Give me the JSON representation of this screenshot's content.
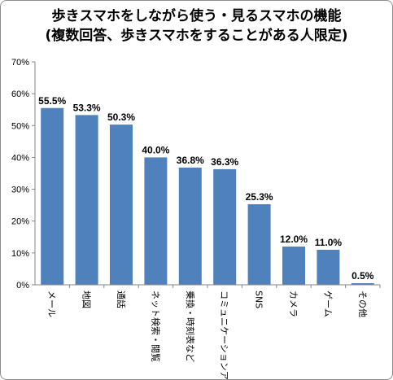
{
  "chart_data": {
    "type": "bar",
    "title": "歩きスマホをしながら使う・見るスマホの機能",
    "subtitle": "(複数回答、歩きスマホをすることがある人限定)",
    "categories": [
      "メール",
      "地図",
      "通話",
      "ネット検索・閲覧",
      "乗換・時刻表など",
      "コミュニケーションアプリ",
      "SNS",
      "カメラ",
      "ゲーム",
      "その他"
    ],
    "values": [
      55.5,
      53.3,
      50.3,
      40.0,
      36.8,
      36.3,
      25.3,
      12.0,
      11.0,
      0.5
    ],
    "value_labels": [
      "55.5%",
      "53.3%",
      "50.3%",
      "40.0%",
      "36.8%",
      "36.3%",
      "25.3%",
      "12.0%",
      "11.0%",
      "0.5%"
    ],
    "ylim": [
      0,
      70
    ],
    "yticks": [
      0,
      10,
      20,
      30,
      40,
      50,
      60,
      70
    ],
    "ytick_labels": [
      "0%",
      "10%",
      "20%",
      "30%",
      "40%",
      "50%",
      "60%",
      "70%"
    ],
    "grid": false,
    "legend": "none",
    "colors": {
      "bar": "#4f81bd",
      "axis": "#868686"
    }
  }
}
